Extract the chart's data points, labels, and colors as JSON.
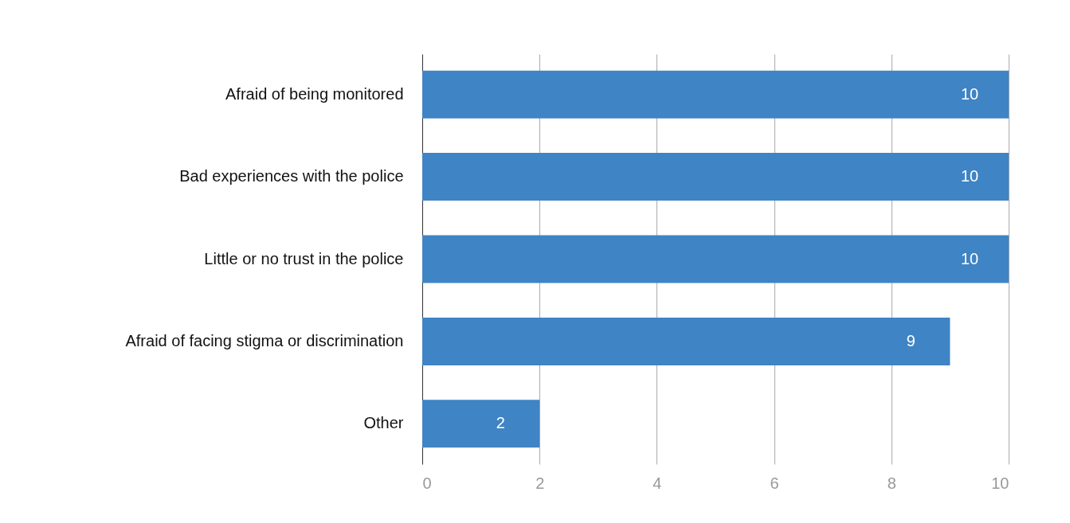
{
  "chart_data": {
    "type": "bar",
    "orientation": "horizontal",
    "categories": [
      "Afraid of being monitored",
      "Bad experiences with the police",
      "Little or no trust in the police",
      "Afraid of facing stigma or discrimination",
      "Other"
    ],
    "values": [
      10,
      10,
      10,
      9,
      2
    ],
    "color": "#3f84c5",
    "xlim": [
      0,
      10
    ],
    "xticks": [
      0,
      2,
      4,
      6,
      8,
      10
    ],
    "grid": "x",
    "data_labels": true
  }
}
